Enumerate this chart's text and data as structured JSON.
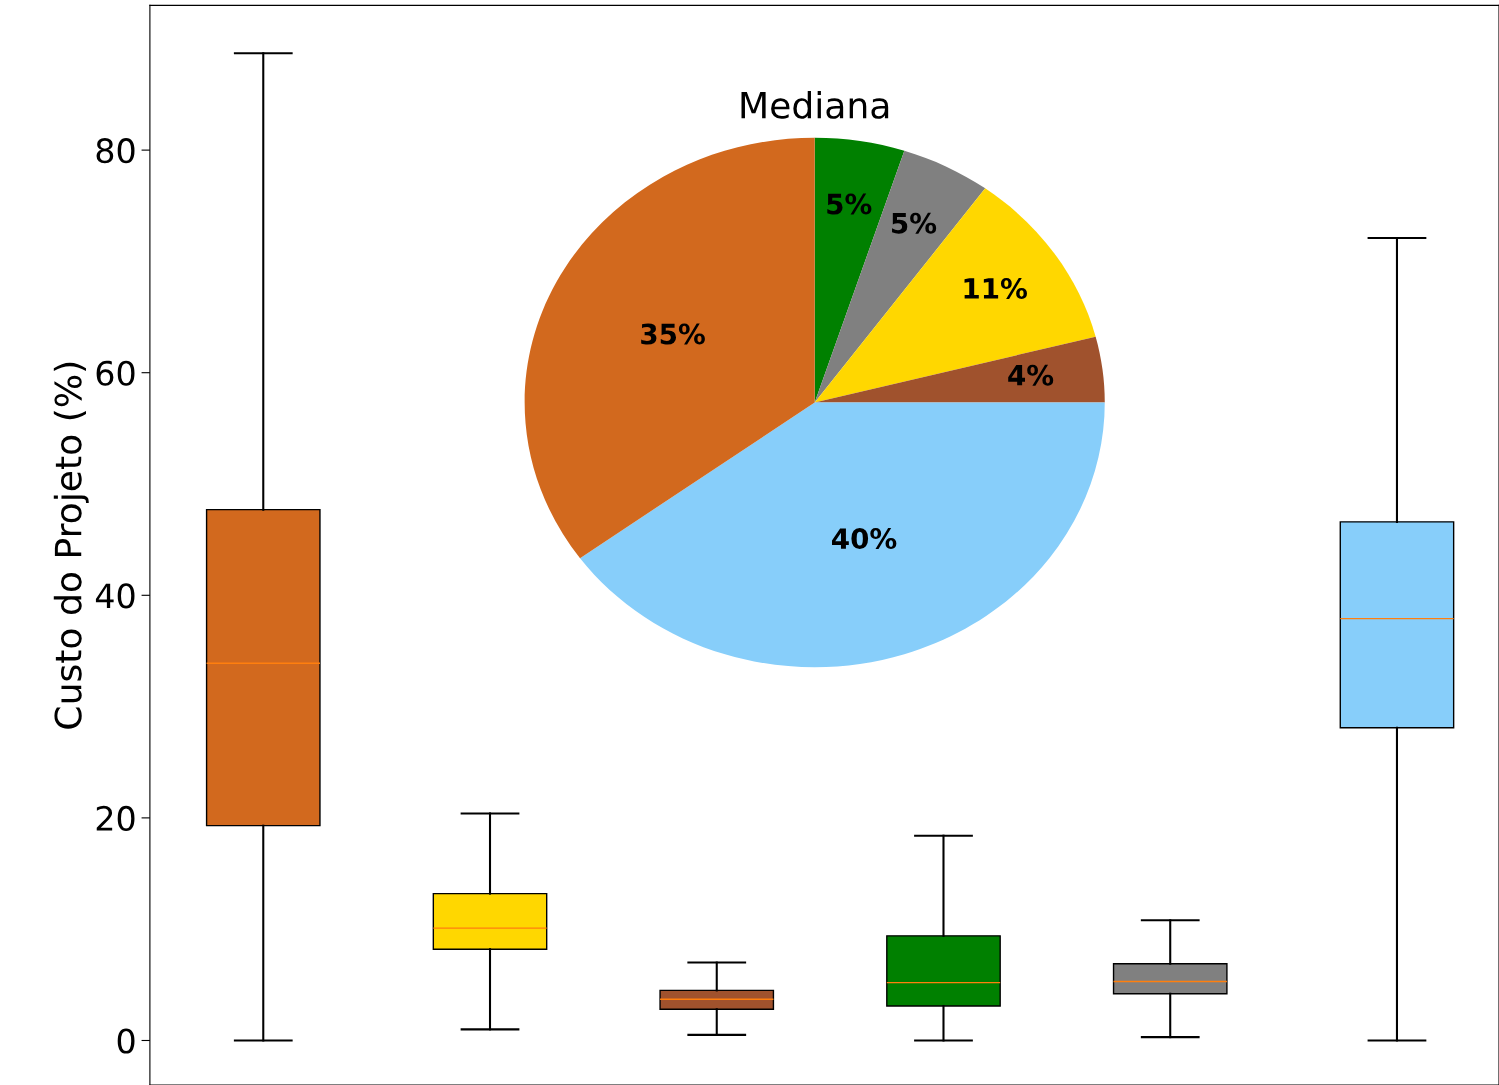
{
  "chart_data": [
    {
      "type": "box",
      "ylabel": "Custo do Projeto (%)",
      "categories": [
        null,
        null,
        null,
        null,
        null,
        null
      ],
      "boxes": [
        {
          "low": 0,
          "q1": 19.3,
          "median": 33.9,
          "q3": 47.7,
          "high": 88.7
        },
        {
          "low": 1.0,
          "q1": 8.2,
          "median": 10.1,
          "q3": 13.2,
          "high": 20.4
        },
        {
          "low": 0.5,
          "q1": 2.8,
          "median": 3.7,
          "q3": 4.5,
          "high": 7.0
        },
        {
          "low": 0,
          "q1": 3.1,
          "median": 5.2,
          "q3": 9.4,
          "high": 18.4
        },
        {
          "low": 0.3,
          "q1": 4.2,
          "median": 5.3,
          "q3": 6.9,
          "high": 10.8
        },
        {
          "low": 0,
          "q1": 28.1,
          "median": 37.9,
          "q3": 46.6,
          "high": 72.1
        }
      ],
      "colors": [
        "#d2691e",
        "#ffd700",
        "#a0522d",
        "#008000",
        "#808080",
        "#87cefa"
      ],
      "ylim": [
        -4,
        93
      ],
      "yticks": [
        0,
        20,
        40,
        60,
        80
      ],
      "tick_labels": "y"
    },
    {
      "type": "pie",
      "title": "Mediana",
      "categories": [
        null,
        null,
        null,
        null,
        null,
        null
      ],
      "values": [
        5,
        5,
        11,
        4,
        40,
        35
      ],
      "colors": [
        "#008000",
        "#808080",
        "#ffd700",
        "#a0522d",
        "#87cefa",
        "#d2691e"
      ],
      "value_labels": [
        "5%",
        "5%",
        "11%",
        "4%",
        "40%",
        "35%"
      ]
    }
  ]
}
